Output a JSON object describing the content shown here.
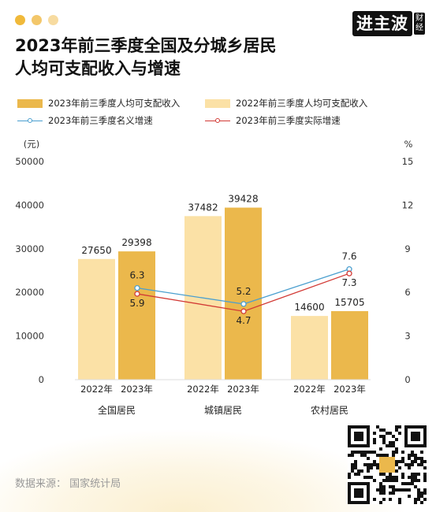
{
  "title_lines": [
    "2023年前三季度全国及分城乡居民",
    "人均可支配收入与增速"
  ],
  "brand": {
    "main": "进主波",
    "sub": "财经"
  },
  "window_dots": [
    "#f0b93a",
    "#f3c76a",
    "#f7dba0"
  ],
  "source": "数据来源：  国家统计局",
  "colors": {
    "bar_2023": "#ebb84c",
    "bar_2022": "#fbe1a6",
    "nominal": "#4a9fcf",
    "real": "#d23a35"
  },
  "chart_data": {
    "type": "bar",
    "groups": [
      "全国居民",
      "城镇居民",
      "农村居民"
    ],
    "bar_labels": [
      "2022年",
      "2023年"
    ],
    "legend": [
      {
        "key": "bar_2023",
        "label": "2023年前三季度人均可支配收入"
      },
      {
        "key": "bar_2022",
        "label": "2022年前三季度人均可支配收入"
      },
      {
        "key": "nominal",
        "label": "2023年前三季度名义增速"
      },
      {
        "key": "real",
        "label": "2023年前三季度实际增速"
      }
    ],
    "series": [
      {
        "name": "2022年前三季度人均可支配收入",
        "values": [
          27650,
          37482,
          14600
        ]
      },
      {
        "name": "2023年前三季度人均可支配收入",
        "values": [
          29398,
          39428,
          15705
        ]
      }
    ],
    "lines": [
      {
        "name": "2023年前三季度名义增速",
        "values": [
          6.3,
          5.2,
          7.6
        ]
      },
      {
        "name": "2023年前三季度实际增速",
        "values": [
          5.9,
          4.7,
          7.3
        ]
      }
    ],
    "y_left": {
      "unit": "(元)",
      "ticks": [
        0,
        10000,
        20000,
        30000,
        40000,
        50000
      ],
      "range": [
        0,
        50000
      ]
    },
    "y_right": {
      "unit": "%",
      "ticks": [
        0,
        3,
        6,
        9,
        12,
        15
      ],
      "range": [
        0,
        15
      ]
    }
  },
  "qr_label": "进主波"
}
